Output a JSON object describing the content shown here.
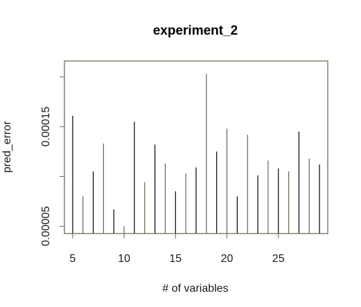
{
  "chart_data": {
    "type": "bar",
    "style": "histogram-spikes",
    "title": "experiment_2",
    "xlabel": "# of variables",
    "ylabel": "pred_error",
    "xlim": [
      4.2,
      29.8
    ],
    "ylim": [
      4.26e-05,
      0.000216
    ],
    "x_ticks": [
      5,
      10,
      15,
      20,
      25
    ],
    "y_ticks": [
      5e-05,
      0.00015
    ],
    "y_tick_labels": [
      "0.00005",
      "0.00015"
    ],
    "grid": false,
    "legend": "none",
    "line_color": "#6b6247",
    "box_color": "#6b6247",
    "points": [
      {
        "x": 5,
        "y": 0.000161
      },
      {
        "x": 6,
        "y": 8e-05
      },
      {
        "x": 7,
        "y": 0.000105
      },
      {
        "x": 8,
        "y": 0.000133
      },
      {
        "x": 9,
        "y": 6.7e-05
      },
      {
        "x": 10,
        "y": 5e-05
      },
      {
        "x": 11,
        "y": 0.000155
      },
      {
        "x": 12,
        "y": 9.4e-05
      },
      {
        "x": 13,
        "y": 0.000132
      },
      {
        "x": 14,
        "y": 0.000113
      },
      {
        "x": 15,
        "y": 8.5e-05
      },
      {
        "x": 16,
        "y": 0.000103
      },
      {
        "x": 17,
        "y": 0.000109
      },
      {
        "x": 18,
        "y": 0.000203
      },
      {
        "x": 19,
        "y": 0.000125
      },
      {
        "x": 20,
        "y": 0.000148
      },
      {
        "x": 21,
        "y": 8e-05
      },
      {
        "x": 22,
        "y": 0.000142
      },
      {
        "x": 23,
        "y": 0.000101
      },
      {
        "x": 24,
        "y": 0.000116
      },
      {
        "x": 25,
        "y": 0.000108
      },
      {
        "x": 26,
        "y": 0.000105
      },
      {
        "x": 27,
        "y": 0.000145
      },
      {
        "x": 28,
        "y": 0.000118
      },
      {
        "x": 29,
        "y": 0.000112
      }
    ]
  }
}
